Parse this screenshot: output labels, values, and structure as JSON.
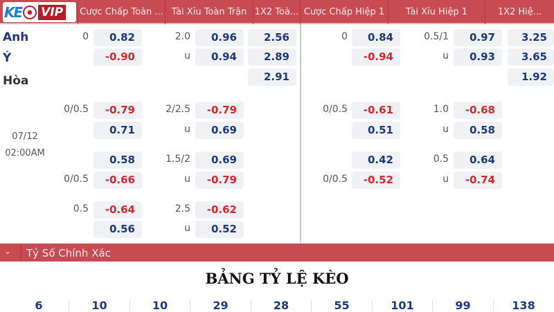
{
  "header": {
    "columns": [
      "Cược Chấp Toàn ...",
      "Tài Xỉu Toàn Trận",
      "1X2 Toà...",
      "Cược Chấp Hiệp 1",
      "Tài Xỉu Hiệp 1",
      "1X2 Hiệ..."
    ]
  },
  "logo": {
    "text_keo": "KE",
    "text_vip": "VIP"
  },
  "teams": {
    "home": "Anh",
    "away": "Ý",
    "draw": "Hòa"
  },
  "match": {
    "date": "07/12",
    "time": "02:00AM"
  },
  "rows": [
    [
      "0",
      "0.82",
      "2.0",
      "0.96",
      "2.56",
      "0",
      "0.84",
      "0.5/1",
      "0.97",
      "3.25"
    ],
    [
      "",
      "-0.90",
      "u",
      "0.94",
      "2.89",
      "",
      "-0.94",
      "u",
      "0.93",
      "3.65"
    ],
    [
      "",
      "",
      "",
      "",
      "2.91",
      "",
      "",
      "",
      "",
      "1.92"
    ],
    [
      "0/0.5",
      "-0.79",
      "2/2.5",
      "-0.79",
      "",
      "0/0.5",
      "-0.61",
      "1.0",
      "-0.68",
      ""
    ],
    [
      "",
      "0.71",
      "u",
      "0.69",
      "",
      "",
      "0.51",
      "u",
      "0.58",
      ""
    ],
    [
      "",
      "0.58",
      "1.5/2",
      "0.69",
      "",
      "",
      "0.42",
      "0.5",
      "0.64",
      ""
    ],
    [
      "0/0.5",
      "-0.66",
      "u",
      "-0.79",
      "",
      "0/0.5",
      "-0.52",
      "u",
      "-0.74",
      ""
    ],
    [
      "0.5",
      "-0.64",
      "2.5",
      "-0.62",
      "",
      "",
      "",
      "",
      "",
      ""
    ],
    [
      "",
      "0.56",
      "u",
      "0.52",
      "",
      "",
      "",
      "",
      "",
      ""
    ]
  ],
  "section": {
    "label": "Tỷ Số Chính Xác"
  },
  "title": "BẢNG TỶ LỆ KÈO",
  "scores": [
    "6",
    "10",
    "10",
    "29",
    "28",
    "55",
    "101",
    "99",
    "138"
  ],
  "colors": {
    "header": "#c84a52",
    "positive": "#1b3a7e",
    "negative": "#d7262e"
  }
}
